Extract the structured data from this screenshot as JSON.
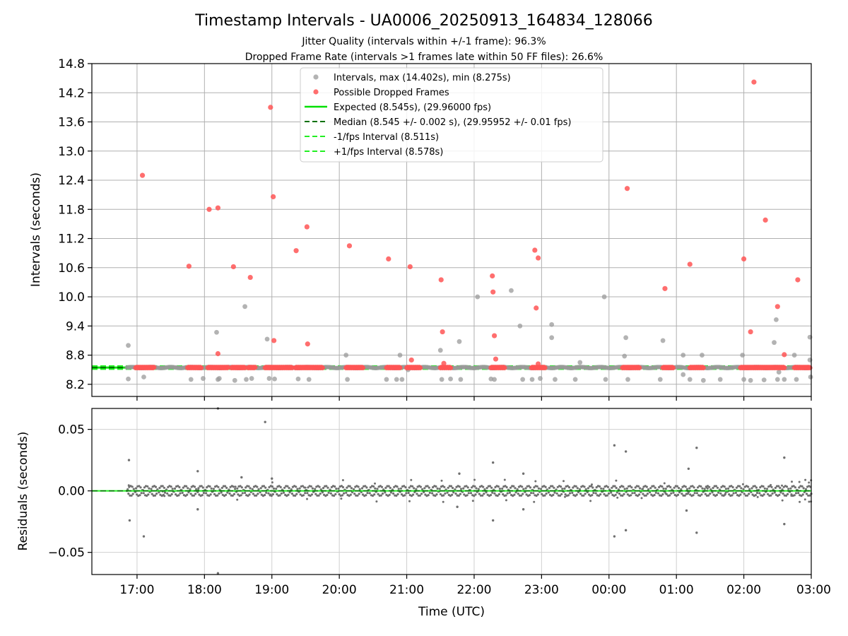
{
  "chart_data": [
    {
      "type": "scatter",
      "title": "Timestamp Intervals - UA0006_20250913_164834_128066",
      "subtitle_lines": [
        "Jitter Quality (intervals within +/-1 frame): 96.3%",
        "Dropped Frame Rate (intervals >1 frames late within 50 FF files): 26.6%"
      ],
      "ylabel": "Intervals (seconds)",
      "xlabel": "",
      "xlim": [
        16.33,
        27.0
      ],
      "ylim": [
        7.95,
        14.8
      ],
      "yticks": [
        8.2,
        8.8,
        9.4,
        10.0,
        10.6,
        11.2,
        11.8,
        12.4,
        13.0,
        13.6,
        14.2,
        14.8
      ],
      "ytick_labels": [
        "8.2",
        "8.8",
        "9.4",
        "10.0",
        "10.6",
        "11.2",
        "11.8",
        "12.4",
        "13.0",
        "13.6",
        "14.2",
        "14.8"
      ],
      "grid": true,
      "legend_position": "top-center",
      "legend": [
        {
          "label": "Intervals, max (14.402s), min (8.275s)",
          "kind": "marker",
          "color": "#999999"
        },
        {
          "label": "Possible Dropped Frames",
          "kind": "marker",
          "color": "#ff5555"
        },
        {
          "label": "Expected (8.545s), (29.96000 fps)",
          "kind": "line",
          "color": "#00e000",
          "dash": "solid"
        },
        {
          "label": "Median (8.545 +/- 0.002 s), (29.95952 +/- 0.01 fps)",
          "kind": "line",
          "color": "#007000",
          "dash": "dashed"
        },
        {
          "label": "-1/fps Interval (8.511s)",
          "kind": "line",
          "color": "#22ee22",
          "dash": "dashed"
        },
        {
          "label": "+1/fps Interval (8.578s)",
          "kind": "line",
          "color": "#22ee22",
          "dash": "dashed"
        }
      ],
      "reference_lines": {
        "expected": 8.545,
        "median": 8.545,
        "minus_one": 8.511,
        "plus_one": 8.578
      },
      "series": [
        {
          "name": "Intervals",
          "color": "#999999",
          "points": [
            [
              16.87,
              9.0
            ],
            [
              16.87,
              8.31
            ],
            [
              17.1,
              8.35
            ],
            [
              17.8,
              8.3
            ],
            [
              17.98,
              8.32
            ],
            [
              18.18,
              9.27
            ],
            [
              18.2,
              8.3
            ],
            [
              18.22,
              8.32
            ],
            [
              18.45,
              8.28
            ],
            [
              18.6,
              9.8
            ],
            [
              18.62,
              8.3
            ],
            [
              18.7,
              8.32
            ],
            [
              18.93,
              9.13
            ],
            [
              18.96,
              8.32
            ],
            [
              19.04,
              8.31
            ],
            [
              19.39,
              8.31
            ],
            [
              19.55,
              8.3
            ],
            [
              20.1,
              8.8
            ],
            [
              20.12,
              8.3
            ],
            [
              20.7,
              8.3
            ],
            [
              20.85,
              8.3
            ],
            [
              20.9,
              8.8
            ],
            [
              20.93,
              8.3
            ],
            [
              21.02,
              8.5
            ],
            [
              21.5,
              8.9
            ],
            [
              21.52,
              8.3
            ],
            [
              21.65,
              8.31
            ],
            [
              21.78,
              9.08
            ],
            [
              21.8,
              8.3
            ],
            [
              22.05,
              10.0
            ],
            [
              22.25,
              8.31
            ],
            [
              22.3,
              8.3
            ],
            [
              22.55,
              10.13
            ],
            [
              22.68,
              9.4
            ],
            [
              22.72,
              8.3
            ],
            [
              22.86,
              8.3
            ],
            [
              22.98,
              8.32
            ],
            [
              23.15,
              9.43
            ],
            [
              23.15,
              9.16
            ],
            [
              23.2,
              8.3
            ],
            [
              23.5,
              8.3
            ],
            [
              23.57,
              8.65
            ],
            [
              23.93,
              10.0
            ],
            [
              23.95,
              8.3
            ],
            [
              24.25,
              9.16
            ],
            [
              24.23,
              8.78
            ],
            [
              24.28,
              8.3
            ],
            [
              24.76,
              8.3
            ],
            [
              24.8,
              9.1
            ],
            [
              25.1,
              8.8
            ],
            [
              25.1,
              8.4
            ],
            [
              25.2,
              8.3
            ],
            [
              25.38,
              8.8
            ],
            [
              25.4,
              8.28
            ],
            [
              25.65,
              8.3
            ],
            [
              25.98,
              8.8
            ],
            [
              26.0,
              8.3
            ],
            [
              26.1,
              8.28
            ],
            [
              26.3,
              8.29
            ],
            [
              26.45,
              9.06
            ],
            [
              26.48,
              9.53
            ],
            [
              26.5,
              8.3
            ],
            [
              26.52,
              8.45
            ],
            [
              26.6,
              8.3
            ],
            [
              26.75,
              8.8
            ],
            [
              26.78,
              8.3
            ],
            [
              26.98,
              8.7
            ],
            [
              26.98,
              9.17
            ],
            [
              26.99,
              8.35
            ]
          ]
        },
        {
          "name": "Possible Dropped Frames",
          "color": "#ff5555",
          "points": [
            [
              17.08,
              12.5
            ],
            [
              17.77,
              10.63
            ],
            [
              18.07,
              11.8
            ],
            [
              18.2,
              11.83
            ],
            [
              18.2,
              8.83
            ],
            [
              18.43,
              10.62
            ],
            [
              18.68,
              10.4
            ],
            [
              18.98,
              13.9
            ],
            [
              19.02,
              12.06
            ],
            [
              19.03,
              9.1
            ],
            [
              19.36,
              10.95
            ],
            [
              19.52,
              11.44
            ],
            [
              19.53,
              9.03
            ],
            [
              20.15,
              11.05
            ],
            [
              20.73,
              10.78
            ],
            [
              21.05,
              10.62
            ],
            [
              21.07,
              8.7
            ],
            [
              21.51,
              10.35
            ],
            [
              21.53,
              9.28
            ],
            [
              21.55,
              8.63
            ],
            [
              22.27,
              10.43
            ],
            [
              22.28,
              10.1
            ],
            [
              22.3,
              9.2
            ],
            [
              22.32,
              8.72
            ],
            [
              22.9,
              10.96
            ],
            [
              22.92,
              9.77
            ],
            [
              22.95,
              10.8
            ],
            [
              22.95,
              8.62
            ],
            [
              24.27,
              12.23
            ],
            [
              24.83,
              10.17
            ],
            [
              25.2,
              10.67
            ],
            [
              26.0,
              10.78
            ],
            [
              26.1,
              9.28
            ],
            [
              26.15,
              14.42
            ],
            [
              26.32,
              11.58
            ],
            [
              26.5,
              9.8
            ],
            [
              26.6,
              8.81
            ],
            [
              26.8,
              10.35
            ]
          ]
        }
      ],
      "dropped_frame_clusters": [
        [
          16.98,
          17.25
        ],
        [
          17.75,
          17.95
        ],
        [
          18.05,
          18.35
        ],
        [
          18.4,
          18.6
        ],
        [
          18.65,
          18.75
        ],
        [
          18.9,
          19.3
        ],
        [
          19.35,
          19.75
        ],
        [
          20.1,
          20.35
        ],
        [
          20.7,
          20.9
        ],
        [
          21.0,
          21.2
        ],
        [
          21.5,
          21.65
        ],
        [
          22.25,
          22.45
        ],
        [
          22.85,
          23.05
        ],
        [
          24.2,
          24.45
        ],
        [
          24.8,
          24.95
        ],
        [
          25.2,
          25.4
        ],
        [
          25.95,
          26.6
        ],
        [
          26.75,
          26.98
        ]
      ]
    },
    {
      "type": "scatter",
      "ylabel": "Residuals (seconds)",
      "xlabel": "Time (UTC)",
      "xlim": [
        16.33,
        27.0
      ],
      "ylim": [
        -0.068,
        0.067
      ],
      "yticks": [
        -0.05,
        0.0,
        0.05
      ],
      "ytick_labels": [
        "−0.05",
        "0.00",
        "0.05"
      ],
      "xticks": [
        17,
        18,
        19,
        20,
        21,
        22,
        23,
        24,
        25,
        26,
        27
      ],
      "xtick_labels": [
        "17:00",
        "18:00",
        "19:00",
        "20:00",
        "21:00",
        "22:00",
        "23:00",
        "00:00",
        "01:00",
        "02:00",
        "03:00"
      ],
      "grid": true,
      "outliers": [
        [
          16.88,
          0.025
        ],
        [
          16.89,
          -0.024
        ],
        [
          17.1,
          -0.037
        ],
        [
          17.9,
          0.016
        ],
        [
          17.9,
          -0.015
        ],
        [
          18.2,
          0.067
        ],
        [
          18.2,
          -0.067
        ],
        [
          18.55,
          0.011
        ],
        [
          18.9,
          0.056
        ],
        [
          19.0,
          0.01
        ],
        [
          21.78,
          0.014
        ],
        [
          21.75,
          -0.013
        ],
        [
          22.28,
          0.023
        ],
        [
          22.28,
          -0.024
        ],
        [
          22.73,
          0.014
        ],
        [
          22.73,
          -0.015
        ],
        [
          24.08,
          0.037
        ],
        [
          24.08,
          -0.037
        ],
        [
          24.25,
          0.032
        ],
        [
          24.25,
          -0.032
        ],
        [
          25.3,
          0.035
        ],
        [
          25.3,
          -0.034
        ],
        [
          25.18,
          0.018
        ],
        [
          25.15,
          -0.016
        ],
        [
          26.6,
          0.027
        ],
        [
          26.6,
          -0.027
        ]
      ],
      "band_range": [
        16.85,
        27.0
      ],
      "band_amplitude": 0.004,
      "point_color": "#707070"
    }
  ]
}
